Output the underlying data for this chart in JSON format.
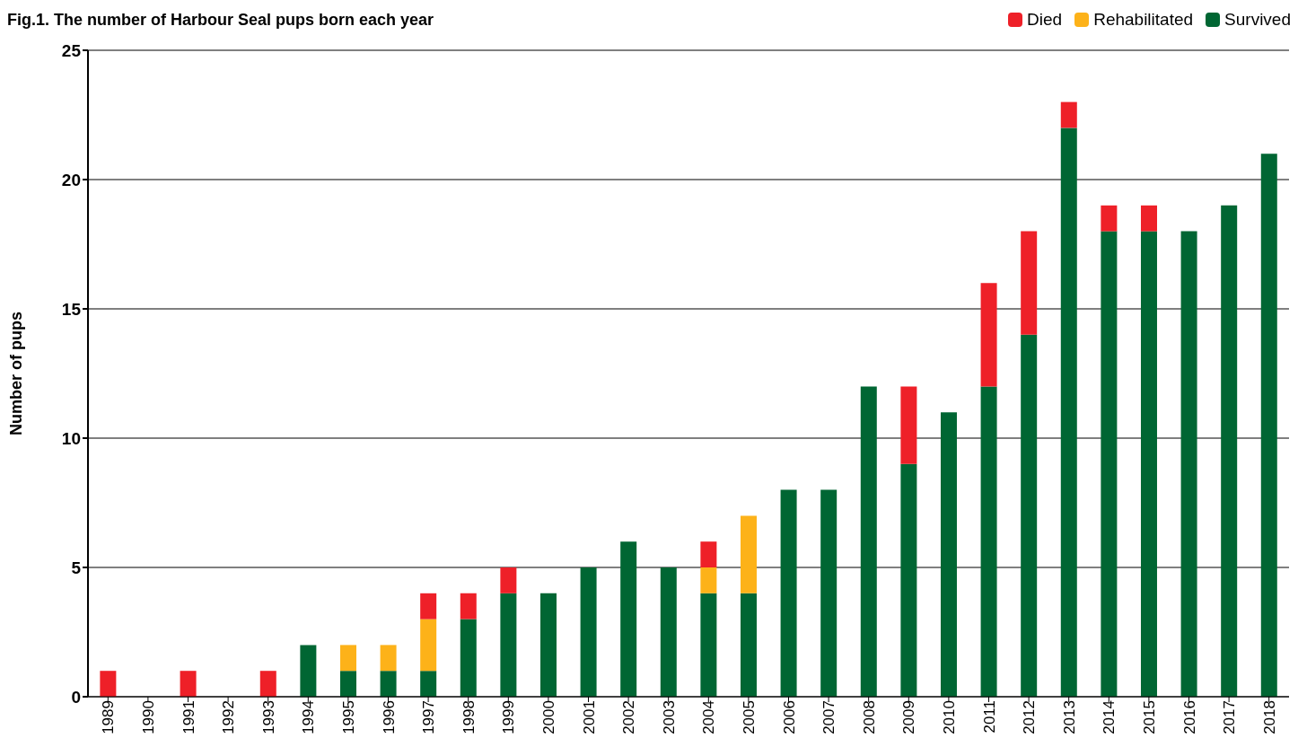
{
  "chart_data": {
    "type": "bar",
    "title": "Fig.1. The number of Harbour Seal pups born each year",
    "ylabel": "Number of pups",
    "categories": [
      "1989",
      "1990",
      "1991",
      "1992",
      "1993",
      "1994",
      "1995",
      "1996",
      "1997",
      "1998",
      "1999",
      "2000",
      "2001",
      "2002",
      "2003",
      "2004",
      "2005",
      "2006",
      "2007",
      "2008",
      "2009",
      "2010",
      "2011",
      "2012",
      "2013",
      "2014",
      "2015",
      "2016",
      "2017",
      "2018"
    ],
    "stacked": true,
    "series": [
      {
        "name": "Survived",
        "color": "#006633",
        "values": [
          0,
          0,
          0,
          0,
          0,
          2,
          1,
          1,
          1,
          3,
          4,
          4,
          5,
          6,
          5,
          4,
          4,
          8,
          8,
          12,
          9,
          11,
          12,
          14,
          22,
          18,
          18,
          18,
          19,
          21
        ]
      },
      {
        "name": "Rehabilitated",
        "color": "#fdb219",
        "values": [
          0,
          0,
          0,
          0,
          0,
          0,
          1,
          1,
          2,
          0,
          0,
          0,
          0,
          0,
          0,
          1,
          3,
          0,
          0,
          0,
          0,
          0,
          0,
          0,
          0,
          0,
          0,
          0,
          0,
          0
        ]
      },
      {
        "name": "Died",
        "color": "#ee2028",
        "values": [
          1,
          0,
          1,
          0,
          1,
          0,
          0,
          0,
          1,
          1,
          1,
          0,
          0,
          0,
          0,
          1,
          0,
          0,
          0,
          0,
          3,
          0,
          4,
          4,
          1,
          1,
          1,
          0,
          0,
          0
        ]
      }
    ],
    "ylim": [
      0,
      25
    ],
    "yticks": [
      0,
      5,
      10,
      15,
      20,
      25
    ],
    "grid": "y",
    "legend": "top right"
  }
}
